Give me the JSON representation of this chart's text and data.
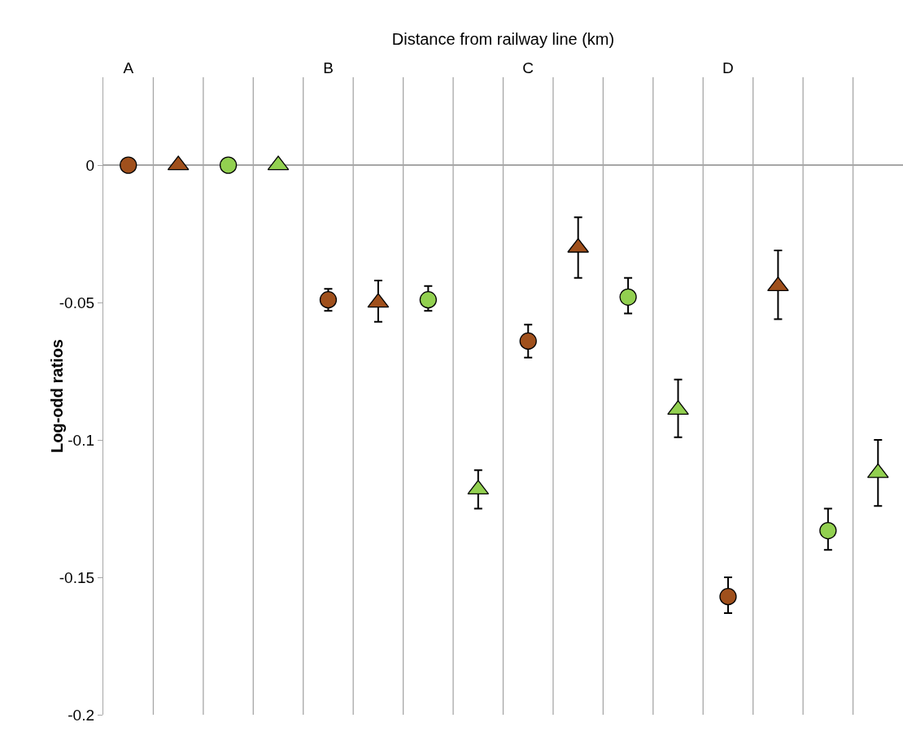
{
  "chart_data": {
    "type": "scatter",
    "xlabel": "Distance from railway line (km)",
    "ylabel": "Log-odd ratios",
    "categories": [
      "A",
      null,
      null,
      null,
      "B",
      null,
      null,
      null,
      "C",
      null,
      null,
      null,
      "D",
      null,
      null,
      null
    ],
    "ylim": [
      -0.2,
      0.032
    ],
    "yticks": [
      0,
      -0.05,
      -0.1,
      -0.15,
      -0.2
    ],
    "grid": "x",
    "series": [
      {
        "color": "#a0501c",
        "marker": "circle",
        "values": [
          0,
          null,
          null,
          null,
          -0.049,
          null,
          null,
          null,
          -0.064,
          null,
          null,
          null,
          -0.157,
          null,
          null,
          null
        ],
        "errors": [
          null,
          null,
          null,
          null,
          [
            -0.053,
            -0.045
          ],
          null,
          null,
          null,
          [
            -0.07,
            -0.058
          ],
          null,
          null,
          null,
          [
            -0.163,
            -0.15
          ],
          null,
          null,
          null
        ]
      },
      {
        "color": "#a0501c",
        "marker": "triangle",
        "values": [
          null,
          0,
          null,
          null,
          null,
          -0.05,
          null,
          null,
          null,
          -0.03,
          null,
          null,
          null,
          -0.044,
          null,
          null
        ],
        "errors": [
          null,
          null,
          null,
          null,
          null,
          [
            -0.057,
            -0.042
          ],
          null,
          null,
          null,
          [
            -0.041,
            -0.019
          ],
          null,
          null,
          null,
          [
            -0.056,
            -0.031
          ],
          null,
          null
        ]
      },
      {
        "color": "#92d050",
        "marker": "circle",
        "values": [
          null,
          null,
          0,
          null,
          null,
          null,
          -0.049,
          null,
          null,
          null,
          -0.048,
          null,
          null,
          null,
          -0.133,
          null
        ],
        "errors": [
          null,
          null,
          null,
          null,
          null,
          null,
          [
            -0.053,
            -0.044
          ],
          null,
          null,
          null,
          [
            -0.054,
            -0.041
          ],
          null,
          null,
          null,
          [
            -0.14,
            -0.125
          ],
          null
        ]
      },
      {
        "color": "#92d050",
        "marker": "triangle",
        "values": [
          null,
          null,
          null,
          0,
          null,
          null,
          null,
          -0.118,
          null,
          null,
          null,
          -0.089,
          null,
          null,
          null,
          -0.112
        ],
        "errors": [
          null,
          null,
          null,
          null,
          null,
          null,
          null,
          [
            -0.125,
            -0.111
          ],
          null,
          null,
          null,
          [
            -0.099,
            -0.078
          ],
          null,
          null,
          null,
          [
            -0.124,
            -0.1
          ]
        ]
      }
    ]
  }
}
